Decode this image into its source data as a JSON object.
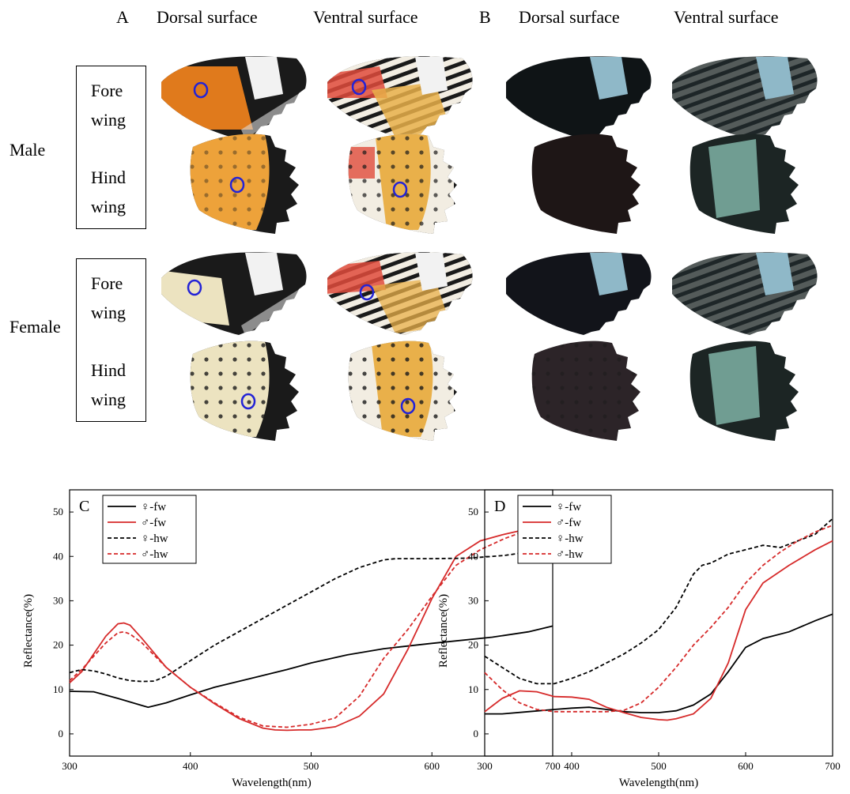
{
  "figure": {
    "panel_A": "A",
    "panel_B": "B",
    "col_dorsal_A": "Dorsal surface",
    "col_ventral_A": "Ventral surface",
    "col_dorsal_B": "Dorsal surface",
    "col_ventral_B": "Ventral surface",
    "male": "Male",
    "female": "Female",
    "male_fore_1": "Fore",
    "male_fore_2": "wing",
    "male_hind_1": "Hind",
    "male_hind_2": "wing",
    "female_fore_1": "Fore",
    "female_fore_2": "wing",
    "female_hind_1": "Hind",
    "female_hind_2": "wing",
    "colors": {
      "male_dorsal_fore_base": "#e07a1c",
      "male_hind_dorsal": "#eda23a",
      "female_hind_dorsal": "#ece3c0",
      "ventral_orange": "#e9b04a",
      "ventral_red": "#e04b3c",
      "wing_black": "#1a1a1a",
      "uv_dark": "#0f1416",
      "uv_blue": "#8fb8c8",
      "uv_teal": "#7fb3a6",
      "marker_blue": "#2323d6"
    }
  },
  "chart_data": [
    {
      "type": "line",
      "panel": "C",
      "xlabel": "Wavelength(nm)",
      "ylabel": "Reflectance(%)",
      "xlim": [
        300,
        700
      ],
      "ylim": [
        -5,
        55
      ],
      "xticks": [
        "300",
        "400",
        "500",
        "600",
        "700"
      ],
      "yticks": [
        "0",
        "10",
        "20",
        "30",
        "40",
        "50"
      ],
      "legend_position": "top-left",
      "series": [
        {
          "name": "♀-fw",
          "color": "#000000",
          "dash": "solid",
          "x": [
            300,
            320,
            340,
            350,
            360,
            365,
            380,
            400,
            420,
            450,
            480,
            500,
            530,
            560,
            600,
            650,
            680,
            700
          ],
          "y": [
            9.6,
            9.5,
            8.0,
            7.2,
            6.4,
            6.0,
            7.0,
            8.8,
            10.5,
            12.5,
            14.5,
            16.0,
            17.8,
            19.2,
            20.4,
            21.8,
            23.0,
            24.3
          ]
        },
        {
          "name": "♂-fw",
          "color": "#d62a2a",
          "dash": "solid",
          "x": [
            300,
            310,
            320,
            330,
            340,
            345,
            350,
            360,
            380,
            400,
            420,
            440,
            460,
            470,
            480,
            490,
            500,
            520,
            540,
            560,
            580,
            600,
            620,
            640,
            660,
            680,
            700
          ],
          "y": [
            11.5,
            14.0,
            18.0,
            22.0,
            24.8,
            25.0,
            24.5,
            21.5,
            15.0,
            10.5,
            6.8,
            3.5,
            1.3,
            0.9,
            0.8,
            0.9,
            0.9,
            1.6,
            4.0,
            9.0,
            19.0,
            30.5,
            40.0,
            43.5,
            45.0,
            46.2,
            46.8
          ]
        },
        {
          "name": "♀-hw",
          "color": "#000000",
          "dash": "dashed",
          "x": [
            300,
            310,
            320,
            330,
            340,
            350,
            360,
            370,
            380,
            400,
            420,
            450,
            480,
            500,
            520,
            540,
            560,
            570,
            600,
            630,
            660,
            680,
            700
          ],
          "y": [
            13.8,
            14.5,
            14.2,
            13.5,
            12.6,
            12.0,
            11.8,
            11.9,
            13.0,
            16.5,
            20.0,
            24.5,
            29.0,
            32.0,
            35.0,
            37.5,
            39.2,
            39.5,
            39.5,
            39.6,
            40.2,
            41.0,
            41.7
          ]
        },
        {
          "name": "♂-hw",
          "color": "#d62a2a",
          "dash": "dashed",
          "x": [
            300,
            310,
            320,
            330,
            340,
            345,
            350,
            360,
            380,
            400,
            420,
            440,
            460,
            480,
            500,
            520,
            540,
            560,
            580,
            600,
            620,
            640,
            660,
            680,
            700
          ],
          "y": [
            12.0,
            14.5,
            17.5,
            20.5,
            22.8,
            23.0,
            22.5,
            20.5,
            15.0,
            10.5,
            7.0,
            3.8,
            1.8,
            1.5,
            2.2,
            3.6,
            8.5,
            17.0,
            23.5,
            31.0,
            38.0,
            41.5,
            44.0,
            46.0,
            47.0
          ]
        }
      ]
    },
    {
      "type": "line",
      "panel": "D",
      "xlabel": "Wavelength(nm)",
      "ylabel": "Reflectance(%)",
      "xlim": [
        300,
        700
      ],
      "ylim": [
        -5,
        55
      ],
      "xticks": [
        "300",
        "400",
        "500",
        "600",
        "700"
      ],
      "yticks": [
        "0",
        "10",
        "20",
        "30",
        "40",
        "50"
      ],
      "legend_position": "top-left",
      "series": [
        {
          "name": "♀-fw",
          "color": "#000000",
          "dash": "solid",
          "x": [
            300,
            320,
            350,
            380,
            400,
            420,
            440,
            460,
            480,
            500,
            520,
            540,
            560,
            580,
            600,
            620,
            650,
            680,
            700
          ],
          "y": [
            4.5,
            4.5,
            5.0,
            5.5,
            5.8,
            6.0,
            5.5,
            5.0,
            4.8,
            4.8,
            5.2,
            6.5,
            9.0,
            14.0,
            19.5,
            21.5,
            23.0,
            25.5,
            27.0
          ]
        },
        {
          "name": "♂-fw",
          "color": "#d62a2a",
          "dash": "solid",
          "x": [
            300,
            310,
            320,
            340,
            360,
            380,
            400,
            420,
            440,
            460,
            480,
            500,
            510,
            520,
            540,
            560,
            580,
            590,
            600,
            620,
            650,
            680,
            700
          ],
          "y": [
            5.0,
            6.5,
            8.0,
            9.7,
            9.5,
            8.4,
            8.3,
            7.8,
            6.0,
            4.8,
            3.7,
            3.2,
            3.1,
            3.4,
            4.5,
            8.0,
            16.0,
            22.0,
            28.0,
            34.0,
            38.0,
            41.5,
            43.5
          ]
        },
        {
          "name": "♀-hw",
          "color": "#000000",
          "dash": "dashed",
          "x": [
            300,
            320,
            340,
            360,
            380,
            400,
            420,
            440,
            460,
            480,
            500,
            520,
            540,
            550,
            560,
            580,
            600,
            620,
            640,
            660,
            680,
            700
          ],
          "y": [
            17.5,
            15.0,
            12.5,
            11.3,
            11.3,
            12.5,
            14.0,
            16.0,
            18.0,
            20.5,
            23.5,
            28.5,
            36.0,
            38.0,
            38.5,
            40.5,
            41.5,
            42.5,
            42.0,
            43.5,
            45.0,
            48.5
          ]
        },
        {
          "name": "♂-hw",
          "color": "#d62a2a",
          "dash": "dashed",
          "x": [
            300,
            320,
            340,
            360,
            380,
            400,
            420,
            440,
            460,
            480,
            500,
            520,
            540,
            560,
            580,
            600,
            620,
            640,
            660,
            680,
            700
          ],
          "y": [
            13.8,
            10.0,
            7.0,
            5.5,
            5.0,
            5.0,
            5.0,
            5.0,
            5.3,
            7.0,
            10.5,
            15.0,
            20.0,
            24.0,
            28.5,
            34.0,
            38.0,
            41.0,
            43.5,
            45.5,
            47.0
          ]
        }
      ]
    }
  ]
}
